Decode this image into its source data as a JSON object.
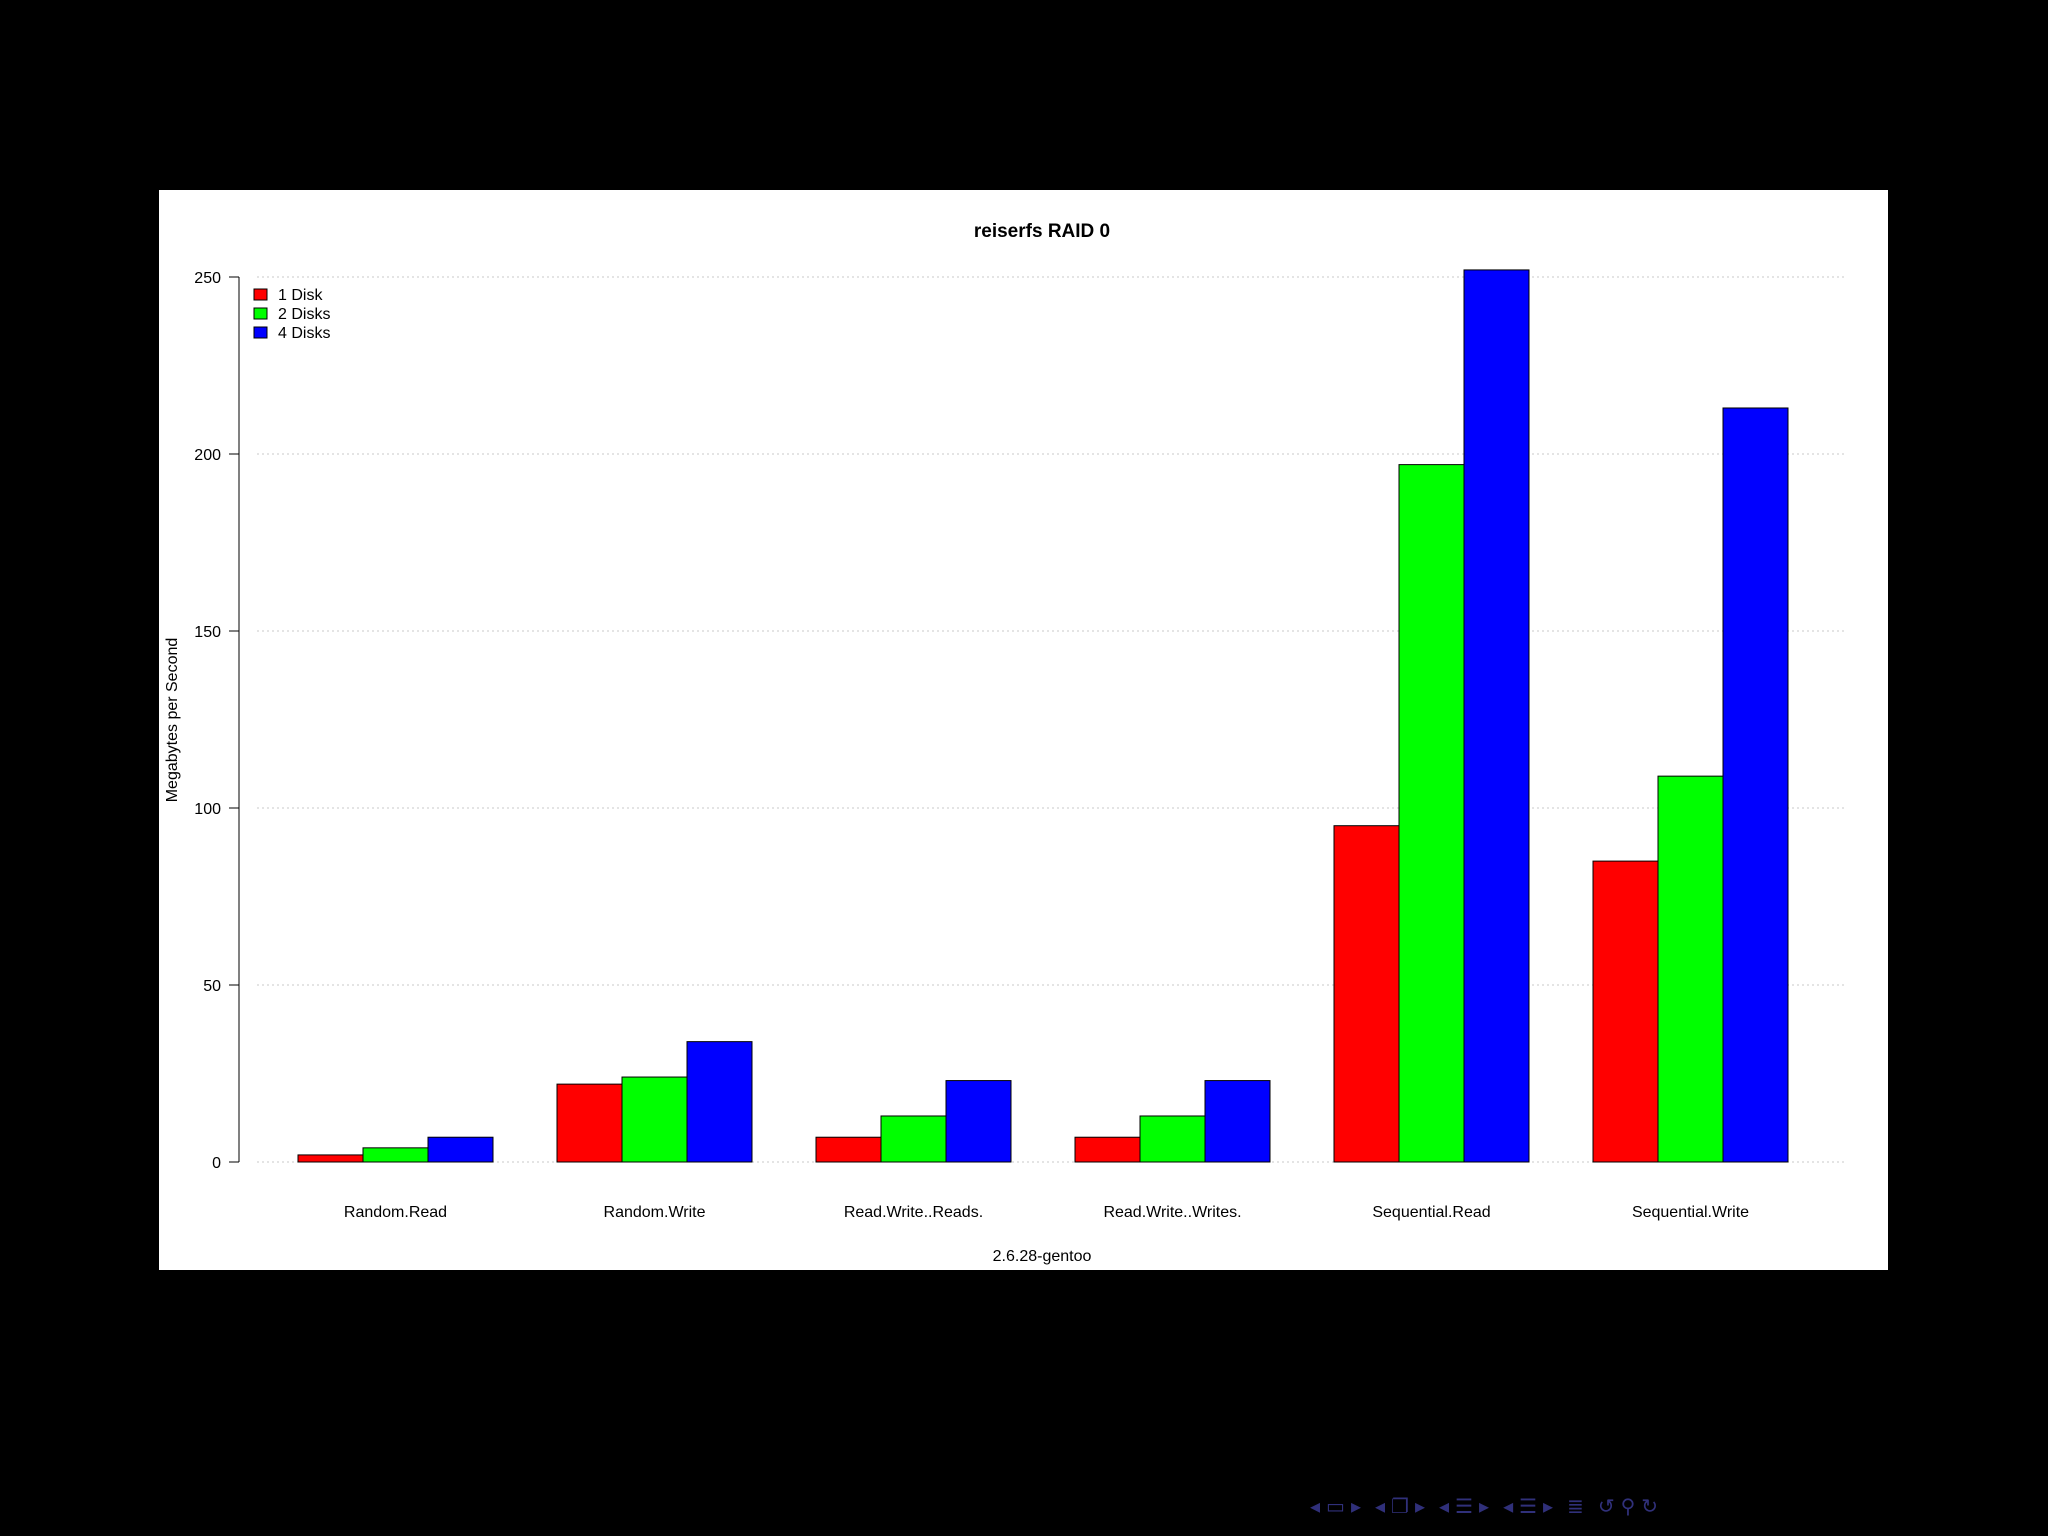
{
  "colors": {
    "slide_background": "#000000",
    "plot_background": "#ffffff",
    "series_1": "#ff0000",
    "series_2": "#00ff00",
    "series_3": "#0000ff",
    "nav_icons": "#30307a"
  },
  "chart_data": {
    "type": "bar",
    "title": "reiserfs RAID 0",
    "xlabel": "2.6.28-gentoo",
    "ylabel": "Megabytes per Second",
    "ylim": [
      0,
      250
    ],
    "yticks": [
      "0",
      "50",
      "100",
      "150",
      "200",
      "250"
    ],
    "grid": true,
    "legend_position": "top-left",
    "categories": [
      "Random.Read",
      "Random.Write",
      "Read.Write..Reads.",
      "Read.Write..Writes.",
      "Sequential.Read",
      "Sequential.Write"
    ],
    "series": [
      {
        "name": "1 Disk",
        "color": "#ff0000",
        "values": [
          2,
          22,
          7,
          7,
          95,
          85
        ]
      },
      {
        "name": "2 Disks",
        "color": "#00ff00",
        "values": [
          4,
          24,
          13,
          13,
          197,
          109
        ]
      },
      {
        "name": "4 Disks",
        "color": "#0000ff",
        "values": [
          7,
          34,
          23,
          23,
          252,
          213
        ]
      }
    ]
  },
  "navigation": {
    "icons": [
      "nav-left-arrow-icon",
      "frame-icon",
      "nav-right-arrow-icon",
      "nav-left-arrow-icon",
      "slides-icon",
      "nav-right-arrow-icon",
      "nav-left-arrow-icon",
      "section-icon",
      "nav-right-arrow-icon",
      "nav-left-arrow-icon",
      "subsection-icon",
      "nav-right-arrow-icon",
      "toc-icon",
      "undo-icon",
      "search-icon",
      "redo-icon"
    ]
  }
}
